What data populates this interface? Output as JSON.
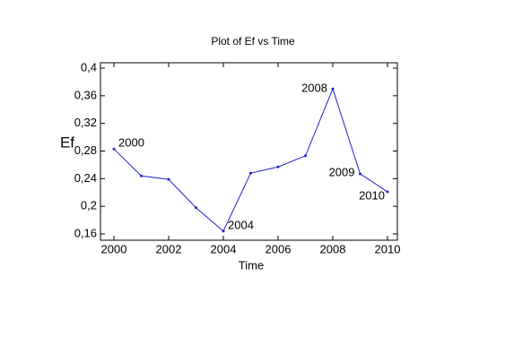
{
  "chart_data": {
    "type": "line",
    "title": "Plot of Ef vs Time",
    "x_label": "Time",
    "y_label": "Ef",
    "x": [
      2000,
      2001,
      2002,
      2003,
      2004,
      2005,
      2006,
      2007,
      2008,
      2009,
      2010
    ],
    "series": [
      {
        "name": "Ef",
        "color": "#2222cc",
        "values": [
          0.283,
          0.244,
          0.239,
          0.198,
          0.164,
          0.248,
          0.257,
          0.273,
          0.37,
          0.247,
          0.221
        ]
      }
    ],
    "xlim": [
      2000,
      2010
    ],
    "xticks": [
      2000,
      2002,
      2004,
      2006,
      2008,
      2010
    ],
    "ylim": [
      0.16,
      0.4
    ],
    "yticks": [
      {
        "value": 0.16,
        "label": "0,16"
      },
      {
        "value": 0.2,
        "label": "0,2"
      },
      {
        "value": 0.24,
        "label": "0,24"
      },
      {
        "value": 0.28,
        "label": "0,28"
      },
      {
        "value": 0.32,
        "label": "0,32"
      },
      {
        "value": 0.36,
        "label": "0,36"
      },
      {
        "value": 0.4,
        "label": "0,4"
      }
    ],
    "annotations": [
      {
        "text": "2000",
        "x": 2000
      },
      {
        "text": "2004",
        "x": 2004
      },
      {
        "text": "2008",
        "x": 2008
      },
      {
        "text": "2009",
        "x": 2009
      },
      {
        "text": "2010",
        "x": 2010
      }
    ]
  }
}
